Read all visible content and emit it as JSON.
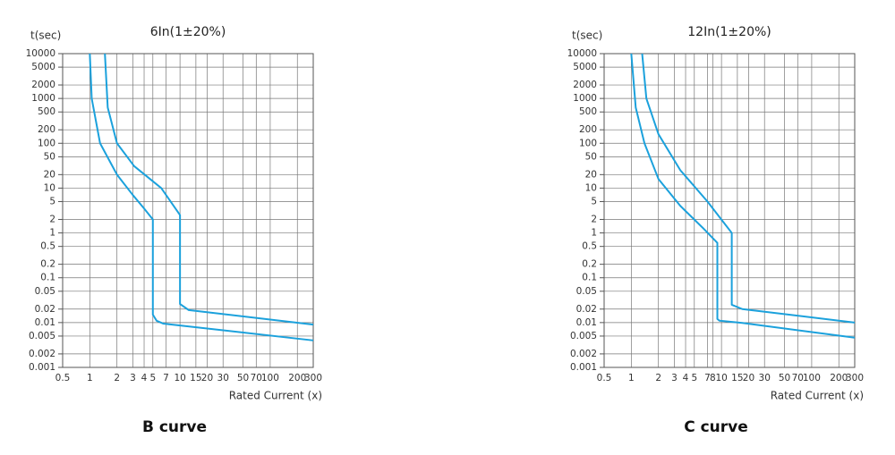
{
  "chart_data": [
    {
      "type": "line",
      "title": "6In(1±20%)",
      "y_label": "t(sec)",
      "x_label": "Rated Current (x)",
      "caption": "B  curve",
      "x_scale": "log",
      "y_scale": "log",
      "grid": true,
      "xlim": [
        0.5,
        300
      ],
      "ylim": [
        0.001,
        10000
      ],
      "xticks": [
        0.5,
        1,
        2,
        3,
        4,
        5,
        7,
        10,
        15,
        20,
        30,
        50,
        70,
        100,
        200,
        300
      ],
      "yticks": [
        10000,
        5000,
        2000,
        1000,
        500,
        200,
        100,
        50,
        20,
        10,
        5,
        2,
        1,
        0.5,
        0.2,
        0.1,
        0.05,
        0.02,
        0.01,
        0.005,
        0.002,
        0.001
      ],
      "series": [
        {
          "color": "#1ba1dc",
          "x": [
            1,
            1.05,
            1.3,
            2,
            3,
            4,
            5,
            5,
            5.5,
            6.5,
            300
          ],
          "values": [
            10000,
            1000,
            100,
            20,
            7,
            3.5,
            2,
            0.015,
            0.011,
            0.0095,
            0.004
          ]
        },
        {
          "color": "#1ba1dc",
          "x": [
            1.47,
            1.58,
            2,
            3.1,
            6.2,
            10,
            10,
            12.5,
            300
          ],
          "values": [
            10000,
            630,
            100,
            31,
            10,
            2.5,
            0.026,
            0.019,
            0.009
          ]
        }
      ]
    },
    {
      "type": "line",
      "title": "12In(1±20%)",
      "y_label": "t(sec)",
      "x_label": "Rated Current (x)",
      "caption": "C  curve",
      "x_scale": "log",
      "y_scale": "log",
      "grid": true,
      "xlim": [
        0.5,
        300
      ],
      "ylim": [
        0.001,
        10000
      ],
      "xticks": [
        0.5,
        1,
        2,
        3,
        4,
        5,
        7,
        8,
        10,
        15,
        20,
        30,
        50,
        70,
        100,
        200,
        300
      ],
      "yticks": [
        10000,
        5000,
        2000,
        1000,
        500,
        200,
        100,
        50,
        20,
        10,
        5,
        2,
        1,
        0.5,
        0.2,
        0.1,
        0.05,
        0.02,
        0.01,
        0.005,
        0.002,
        0.001
      ],
      "series": [
        {
          "color": "#1ba1dc",
          "x": [
            1,
            1.12,
            1.4,
            2,
            3.5,
            6.2,
            9,
            9,
            9.5,
            17,
            300
          ],
          "values": [
            10000,
            630,
            100,
            16,
            4,
            1.3,
            0.6,
            0.012,
            0.011,
            0.0098,
            0.0046
          ]
        },
        {
          "color": "#1ba1dc",
          "x": [
            1.32,
            1.47,
            2,
            3.5,
            7,
            13,
            13,
            17,
            300
          ],
          "values": [
            10000,
            1000,
            160,
            25,
            5,
            1,
            0.025,
            0.02,
            0.01
          ]
        }
      ]
    }
  ]
}
